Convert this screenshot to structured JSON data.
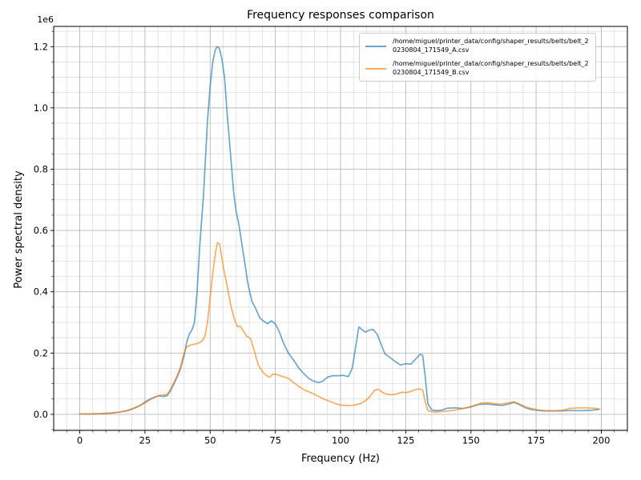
{
  "figure": {
    "title": "Frequency responses comparison",
    "xlabel": "Frequency (Hz)",
    "ylabel": "Power spectral density",
    "offset_text": "1e6"
  },
  "chart_data": {
    "type": "line",
    "title": "Frequency responses comparison",
    "xlabel": "Frequency (Hz)",
    "ylabel": "Power spectral density",
    "y_unit_multiplier": 1000000,
    "xlim": [
      -10,
      210
    ],
    "ylim": [
      -0.0525,
      1.266
    ],
    "grid": "both",
    "legend_position": "upper right",
    "x_major_ticks": [
      0,
      25,
      50,
      75,
      100,
      125,
      150,
      175,
      200
    ],
    "x_tick_labels": [
      "0",
      "25",
      "50",
      "75",
      "100",
      "125",
      "150",
      "175",
      "200"
    ],
    "x_minor_step": 5,
    "y_major_ticks": [
      0.0,
      0.2,
      0.4,
      0.6,
      0.8,
      1.0,
      1.2
    ],
    "y_tick_labels": [
      "0.0",
      "0.2",
      "0.4",
      "0.6",
      "0.8",
      "1.0",
      "1.2"
    ],
    "y_minor_step": 0.05,
    "series": [
      {
        "name": "/home/miguel/printer_data/config/shaper_results/belts/belt_20230804_171549_A.csv",
        "label_lines": [
          "/home/miguel/printer_data/config/shaper_results/belts/belt_2",
          "0230804_171549_A.csv"
        ],
        "color": "#1f77b4",
        "alpha": 0.65,
        "x": [
          0,
          4,
          8,
          12,
          15,
          18,
          21,
          23,
          25,
          27,
          29,
          30.5,
          32,
          33.5,
          35,
          37,
          38.5,
          40,
          41,
          42,
          43,
          44,
          45,
          46,
          47.5,
          49,
          50,
          51,
          52,
          52.7,
          53.5,
          54.5,
          55.5,
          56.5,
          58,
          59,
          60,
          61,
          62,
          63,
          64.5,
          66,
          67.5,
          69,
          70.5,
          72,
          73.5,
          75,
          76.5,
          78,
          80,
          82,
          84,
          86,
          88,
          90,
          91.5,
          93,
          95,
          97,
          99,
          101,
          103,
          104.5,
          106,
          107,
          108,
          109.5,
          111,
          112.5,
          114,
          115.5,
          117,
          119,
          121,
          123,
          125,
          127,
          129,
          130.5,
          131.5,
          132.5,
          133.5,
          135,
          137,
          139,
          141,
          144,
          147,
          150,
          153,
          156,
          159,
          162,
          164.5,
          166.5,
          168.5,
          171,
          173,
          175.5,
          178,
          181,
          184,
          187,
          190,
          193,
          196,
          199
        ],
        "y_1e6": [
          0.001,
          0.001,
          0.002,
          0.004,
          0.007,
          0.011,
          0.02,
          0.028,
          0.04,
          0.05,
          0.057,
          0.06,
          0.058,
          0.061,
          0.08,
          0.115,
          0.145,
          0.19,
          0.235,
          0.262,
          0.275,
          0.3,
          0.4,
          0.55,
          0.72,
          0.96,
          1.07,
          1.15,
          1.19,
          1.2,
          1.195,
          1.16,
          1.1,
          0.985,
          0.83,
          0.725,
          0.66,
          0.62,
          0.565,
          0.51,
          0.425,
          0.37,
          0.345,
          0.315,
          0.304,
          0.296,
          0.305,
          0.295,
          0.27,
          0.235,
          0.2,
          0.177,
          0.151,
          0.132,
          0.116,
          0.107,
          0.104,
          0.107,
          0.121,
          0.126,
          0.126,
          0.127,
          0.123,
          0.15,
          0.23,
          0.285,
          0.278,
          0.268,
          0.275,
          0.277,
          0.262,
          0.23,
          0.198,
          0.185,
          0.172,
          0.161,
          0.165,
          0.164,
          0.182,
          0.196,
          0.193,
          0.12,
          0.035,
          0.014,
          0.012,
          0.014,
          0.02,
          0.021,
          0.019,
          0.024,
          0.032,
          0.034,
          0.031,
          0.029,
          0.034,
          0.039,
          0.032,
          0.021,
          0.016,
          0.013,
          0.011,
          0.011,
          0.011,
          0.012,
          0.012,
          0.012,
          0.013,
          0.016
        ]
      },
      {
        "name": "/home/miguel/printer_data/config/shaper_results/belts/belt_20230804_171549_B.csv",
        "label_lines": [
          "/home/miguel/printer_data/config/shaper_results/belts/belt_2",
          "0230804_171549_B.csv"
        ],
        "color": "#ff7f0e",
        "alpha": 0.65,
        "x": [
          0,
          4,
          8,
          12,
          15,
          18,
          21,
          23,
          25,
          27,
          29,
          30.5,
          32,
          33.5,
          35,
          37,
          38.5,
          40,
          41,
          42.5,
          44,
          45.5,
          47,
          48,
          49,
          50,
          51,
          52,
          52.8,
          53.6,
          54.5,
          55.5,
          56.5,
          58,
          59.5,
          60.5,
          61.5,
          62.5,
          64,
          65.5,
          67,
          68.5,
          70,
          71.5,
          72.8,
          74,
          75.5,
          77,
          78.5,
          80,
          82,
          84,
          86,
          88,
          90,
          92,
          94,
          96,
          98,
          100,
          102,
          104,
          106,
          108,
          110,
          111.5,
          113,
          114.5,
          116,
          117.5,
          119.5,
          121.5,
          123.5,
          125.5,
          127.5,
          129,
          130.5,
          131.5,
          132.5,
          133.5,
          135,
          137,
          139,
          141,
          143.5,
          146,
          148.5,
          151,
          154,
          156.5,
          159,
          161.5,
          164,
          166.5,
          169,
          171,
          173.5,
          176,
          179,
          182,
          185,
          188,
          191,
          194,
          197,
          199.5
        ],
        "y_1e6": [
          0.001,
          0.001,
          0.002,
          0.004,
          0.007,
          0.012,
          0.021,
          0.029,
          0.036,
          0.048,
          0.056,
          0.062,
          0.063,
          0.065,
          0.085,
          0.12,
          0.15,
          0.2,
          0.22,
          0.226,
          0.229,
          0.232,
          0.24,
          0.255,
          0.3,
          0.38,
          0.46,
          0.525,
          0.56,
          0.556,
          0.51,
          0.46,
          0.42,
          0.352,
          0.305,
          0.287,
          0.288,
          0.275,
          0.255,
          0.248,
          0.205,
          0.16,
          0.14,
          0.127,
          0.121,
          0.131,
          0.13,
          0.125,
          0.122,
          0.117,
          0.104,
          0.091,
          0.08,
          0.073,
          0.065,
          0.057,
          0.048,
          0.042,
          0.035,
          0.03,
          0.029,
          0.029,
          0.031,
          0.036,
          0.047,
          0.06,
          0.078,
          0.082,
          0.072,
          0.066,
          0.064,
          0.066,
          0.072,
          0.071,
          0.077,
          0.081,
          0.083,
          0.079,
          0.04,
          0.012,
          0.008,
          0.008,
          0.009,
          0.011,
          0.013,
          0.017,
          0.022,
          0.028,
          0.037,
          0.038,
          0.035,
          0.033,
          0.037,
          0.041,
          0.032,
          0.024,
          0.018,
          0.014,
          0.012,
          0.012,
          0.013,
          0.019,
          0.021,
          0.021,
          0.02,
          0.017
        ]
      }
    ]
  }
}
